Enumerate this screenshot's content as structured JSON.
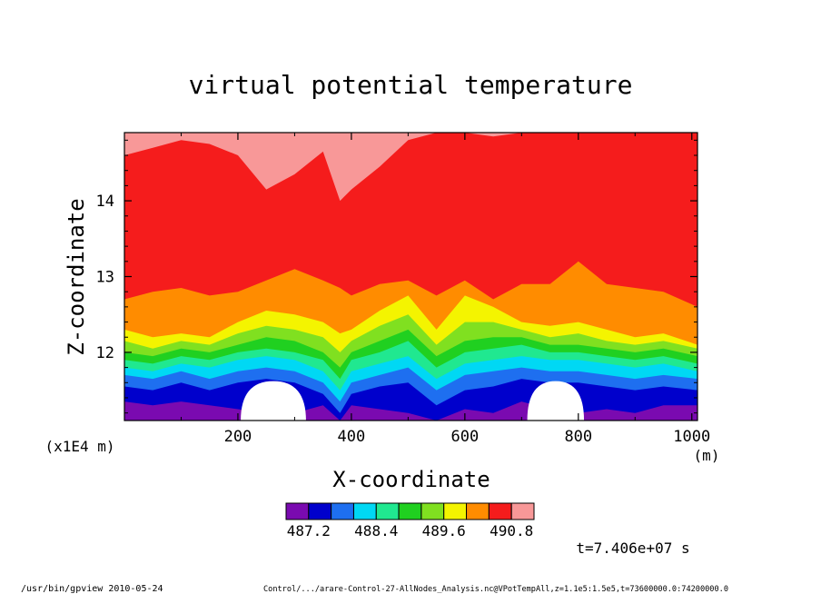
{
  "chart_data": {
    "type": "heatmap",
    "title": "virtual potential temperature",
    "xlabel": "X-coordinate",
    "ylabel": "Z-coordinate",
    "x_unit": "(m)",
    "y_unit": "(x1E4 m)",
    "xlim": [
      0,
      1010
    ],
    "ylim": [
      11.1,
      14.9
    ],
    "x_ticks": [
      200,
      400,
      600,
      800,
      1000
    ],
    "y_ticks": [
      12,
      13,
      14
    ],
    "colorbar": {
      "colors": [
        "#7a0ab0",
        "#0000cc",
        "#1e6ff0",
        "#00d8f4",
        "#20e890",
        "#20d020",
        "#80e020",
        "#f4f400",
        "#ff8c00",
        "#f51c1c",
        "#f89898"
      ],
      "labels": [
        "487.2",
        "488.4",
        "489.6",
        "490.8"
      ],
      "levels_approx": [
        486.9,
        487.2,
        487.5,
        487.8,
        488.1,
        488.4,
        488.7,
        489.0,
        489.3,
        489.6,
        489.9,
        490.2,
        490.5,
        490.8,
        491.1
      ]
    },
    "band_colors_bottom_to_top": [
      "#7a0ab0",
      "#0000cc",
      "#1e6ff0",
      "#00d8f4",
      "#20e890",
      "#20d020",
      "#80e020",
      "#f4f400",
      "#ff8c00",
      "#f51c1c",
      "#f89898"
    ],
    "band_profile_x": [
      0,
      50,
      100,
      150,
      200,
      250,
      300,
      350,
      380,
      400,
      450,
      500,
      550,
      600,
      650,
      700,
      750,
      800,
      850,
      900,
      950,
      1010
    ],
    "band_boundaries_z": [
      [
        11.35,
        11.3,
        11.35,
        11.3,
        11.25,
        11.2,
        11.2,
        11.3,
        11.1,
        11.3,
        11.25,
        11.2,
        11.1,
        11.25,
        11.2,
        11.35,
        11.25,
        11.2,
        11.25,
        11.2,
        11.3,
        11.3
      ],
      [
        11.55,
        11.5,
        11.6,
        11.5,
        11.6,
        11.65,
        11.6,
        11.45,
        11.2,
        11.45,
        11.55,
        11.6,
        11.3,
        11.5,
        11.55,
        11.65,
        11.6,
        11.6,
        11.55,
        11.5,
        11.55,
        11.5
      ],
      [
        11.7,
        11.65,
        11.75,
        11.65,
        11.75,
        11.8,
        11.75,
        11.6,
        11.35,
        11.6,
        11.7,
        11.8,
        11.5,
        11.7,
        11.75,
        11.8,
        11.75,
        11.75,
        11.7,
        11.65,
        11.7,
        11.65
      ],
      [
        11.8,
        11.75,
        11.85,
        11.8,
        11.9,
        11.95,
        11.9,
        11.75,
        11.5,
        11.75,
        11.85,
        11.95,
        11.65,
        11.85,
        11.9,
        11.95,
        11.9,
        11.9,
        11.85,
        11.8,
        11.85,
        11.75
      ],
      [
        11.9,
        11.85,
        11.95,
        11.9,
        12.0,
        12.05,
        12.0,
        11.9,
        11.65,
        11.9,
        12.0,
        12.15,
        11.8,
        12.0,
        12.05,
        12.1,
        12.0,
        12.0,
        11.95,
        11.9,
        11.95,
        11.85
      ],
      [
        12.0,
        11.95,
        12.05,
        12.0,
        12.1,
        12.2,
        12.15,
        12.0,
        11.8,
        12.0,
        12.15,
        12.3,
        11.95,
        12.15,
        12.2,
        12.2,
        12.1,
        12.1,
        12.05,
        12.0,
        12.05,
        11.95
      ],
      [
        12.15,
        12.05,
        12.15,
        12.1,
        12.25,
        12.35,
        12.3,
        12.2,
        12.0,
        12.15,
        12.35,
        12.5,
        12.1,
        12.4,
        12.4,
        12.3,
        12.2,
        12.25,
        12.15,
        12.1,
        12.15,
        12.05
      ],
      [
        12.3,
        12.2,
        12.25,
        12.2,
        12.4,
        12.55,
        12.5,
        12.4,
        12.25,
        12.3,
        12.55,
        12.75,
        12.3,
        12.75,
        12.6,
        12.4,
        12.35,
        12.4,
        12.3,
        12.2,
        12.25,
        12.1
      ],
      [
        12.7,
        12.8,
        12.85,
        12.75,
        12.8,
        12.95,
        13.1,
        12.95,
        12.85,
        12.75,
        12.9,
        12.95,
        12.75,
        12.95,
        12.7,
        12.9,
        12.9,
        13.2,
        12.9,
        12.85,
        12.8,
        12.6
      ],
      [
        14.6,
        14.7,
        14.8,
        14.75,
        14.6,
        14.15,
        14.35,
        14.65,
        14.0,
        14.15,
        14.45,
        14.8,
        14.9,
        14.9,
        14.85,
        14.9,
        14.9,
        14.9,
        14.9,
        14.9,
        14.9,
        14.9
      ]
    ],
    "white_regions": [
      {
        "x_range": [
          205,
          320
        ],
        "z_top": 11.62
      },
      {
        "x_range": [
          710,
          810
        ],
        "z_top": 11.62
      }
    ]
  },
  "footer": {
    "time": "t=7.406e+07 s",
    "program": "/usr/bin/gpview  2010-05-24",
    "source": "Control/.../arare-Control-27-AllNodes_Analysis.nc@VPotTempAll,z=1.1e5:1.5e5,t=73600000.0:74200000.0"
  }
}
